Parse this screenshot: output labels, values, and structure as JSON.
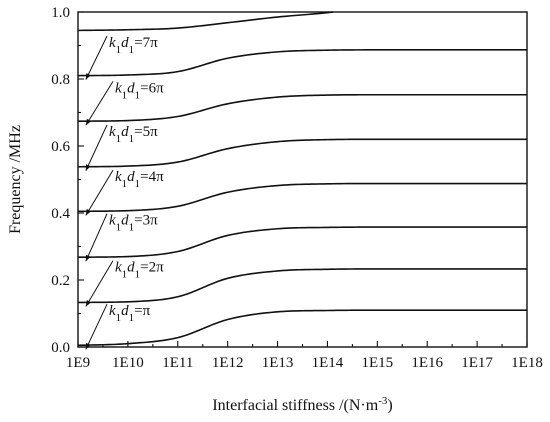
{
  "chart_data": {
    "type": "line",
    "xlabel": "Interfacial stiffness /(N·m⁻³)",
    "xlabel_parts": {
      "main": "Interfacial stiffness /(N·m",
      "sup": "-3",
      "close": ")"
    },
    "ylabel": "Frequency /MHz",
    "x_scale": "log",
    "xlim": [
      1000000000.0,
      1e+18
    ],
    "ylim": [
      0,
      1.0
    ],
    "x_tick_values": [
      1000000000.0,
      10000000000.0,
      100000000000.0,
      1000000000000.0,
      10000000000000.0,
      100000000000000.0,
      1000000000000000.0,
      1e+16,
      1e+17,
      1e+18
    ],
    "x_tick_labels": [
      "1E9",
      "1E10",
      "1E11",
      "1E12",
      "1E13",
      "1E14",
      "1E15",
      "1E16",
      "1E17",
      "1E18"
    ],
    "y_tick_values": [
      0.0,
      0.2,
      0.4,
      0.6,
      0.8,
      1.0
    ],
    "y_tick_labels": [
      "0.0",
      "0.2",
      "0.4",
      "0.6",
      "0.8",
      "1.0"
    ],
    "grid": false,
    "series": [
      {
        "label_parts": [
          "k",
          "1",
          "d",
          "1",
          "=π"
        ],
        "annotation_y": 0.11,
        "x": [
          1000000000.0,
          10000000000.0,
          100000000000.0,
          1000000000000.0,
          10000000000000.0,
          100000000000000.0,
          1000000000000000.0,
          1e+16,
          1e+17,
          1e+18
        ],
        "y": [
          0.005,
          0.01,
          0.028,
          0.082,
          0.105,
          0.109,
          0.11,
          0.11,
          0.11,
          0.11
        ]
      },
      {
        "label_parts": [
          "k",
          "1",
          "d",
          "1",
          "=2π"
        ],
        "annotation_y": 0.24,
        "x": [
          1000000000.0,
          10000000000.0,
          100000000000.0,
          1000000000000.0,
          10000000000000.0,
          100000000000000.0,
          1000000000000000.0,
          1e+16,
          1e+17,
          1e+18
        ],
        "y": [
          0.133,
          0.135,
          0.15,
          0.205,
          0.227,
          0.232,
          0.233,
          0.233,
          0.233,
          0.233
        ]
      },
      {
        "label_parts": [
          "k",
          "1",
          "d",
          "1",
          "=3π"
        ],
        "annotation_y": 0.38,
        "x": [
          1000000000.0,
          10000000000.0,
          100000000000.0,
          1000000000000.0,
          10000000000000.0,
          100000000000000.0,
          1000000000000000.0,
          1e+16,
          1e+17,
          1e+18
        ],
        "y": [
          0.268,
          0.27,
          0.285,
          0.333,
          0.353,
          0.357,
          0.358,
          0.358,
          0.358,
          0.358
        ]
      },
      {
        "label_parts": [
          "k",
          "1",
          "d",
          "1",
          "=4π"
        ],
        "annotation_y": 0.51,
        "x": [
          1000000000.0,
          10000000000.0,
          100000000000.0,
          1000000000000.0,
          10000000000000.0,
          100000000000000.0,
          1000000000000000.0,
          1e+16,
          1e+17,
          1e+18
        ],
        "y": [
          0.405,
          0.407,
          0.42,
          0.462,
          0.482,
          0.487,
          0.488,
          0.488,
          0.488,
          0.488
        ]
      },
      {
        "label_parts": [
          "k",
          "1",
          "d",
          "1",
          "=5π"
        ],
        "annotation_y": 0.645,
        "x": [
          1000000000.0,
          10000000000.0,
          100000000000.0,
          1000000000000.0,
          10000000000000.0,
          100000000000000.0,
          1000000000000000.0,
          1e+16,
          1e+17,
          1e+18
        ],
        "y": [
          0.538,
          0.54,
          0.552,
          0.592,
          0.613,
          0.619,
          0.62,
          0.62,
          0.62,
          0.62
        ]
      },
      {
        "label_parts": [
          "k",
          "1",
          "d",
          "1",
          "=6π"
        ],
        "annotation_y": 0.775,
        "x": [
          1000000000.0,
          10000000000.0,
          100000000000.0,
          1000000000000.0,
          10000000000000.0,
          100000000000000.0,
          1000000000000000.0,
          1e+16,
          1e+17,
          1e+18
        ],
        "y": [
          0.674,
          0.676,
          0.688,
          0.726,
          0.746,
          0.752,
          0.753,
          0.753,
          0.753,
          0.753
        ]
      },
      {
        "label_parts": [
          "k",
          "1",
          "d",
          "1",
          "=7π"
        ],
        "annotation_y": 0.91,
        "x": [
          1000000000.0,
          10000000000.0,
          100000000000.0,
          1000000000000.0,
          10000000000000.0,
          100000000000000.0,
          1000000000000000.0,
          1e+16,
          1e+17,
          1e+18
        ],
        "y": [
          0.81,
          0.812,
          0.822,
          0.862,
          0.881,
          0.886,
          0.887,
          0.887,
          0.887,
          0.887
        ]
      },
      {
        "x": [
          1000000000.0,
          10000000000.0,
          100000000000.0,
          1000000000000.0,
          10000000000000.0,
          100000000000000.0,
          130000000000000.0
        ],
        "y": [
          0.945,
          0.947,
          0.952,
          0.968,
          0.985,
          0.998,
          1.0
        ]
      }
    ]
  }
}
